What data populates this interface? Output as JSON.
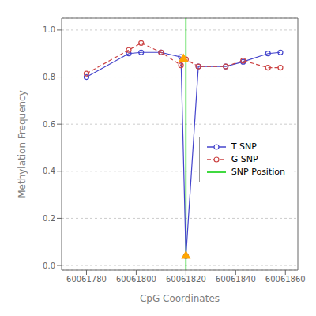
{
  "chart_data": {
    "type": "line",
    "xlabel": "CpG Coordinates",
    "ylabel": "Methylation Frequency",
    "x": [
      60061780,
      60061797,
      60061802,
      60061810,
      60061818,
      60061820,
      60061825,
      60061836,
      60061843,
      60061853,
      60061858
    ],
    "series": [
      {
        "name": "T SNP",
        "color": "#4444cc",
        "line_style": "solid",
        "marker": "circle",
        "values": [
          0.8,
          0.9,
          0.905,
          0.905,
          0.885,
          0.04,
          0.845,
          0.845,
          0.865,
          0.9,
          0.905
        ]
      },
      {
        "name": "G SNP",
        "color": "#cc4444",
        "line_style": "dashed",
        "marker": "circle",
        "values": [
          0.815,
          0.915,
          0.945,
          0.905,
          0.85,
          0.875,
          0.845,
          0.845,
          0.87,
          0.84,
          0.84
        ]
      }
    ],
    "vlines": [
      {
        "name": "SNP Position",
        "x": 60061820,
        "color": "#00cc00",
        "line_style": "solid"
      }
    ],
    "points": {
      "color": "#FFA500",
      "marker": "triangle",
      "x": [
        60061819,
        60061820
      ],
      "y": [
        0.877,
        0.04
      ]
    },
    "xlim": [
      60061770,
      60061865
    ],
    "ylim": [
      -0.02,
      1.05
    ],
    "xticks": [
      60061780,
      60061800,
      60061820,
      60061840,
      60061860
    ],
    "yticks": [
      {
        "value": 0.0,
        "label": "0.0"
      },
      {
        "value": 0.2,
        "label": "0.2"
      },
      {
        "value": 0.4,
        "label": "0.4"
      },
      {
        "value": 0.6,
        "label": "0.6"
      },
      {
        "value": 0.8,
        "label": "0.8"
      },
      {
        "value": 1.0,
        "label": "1.0"
      }
    ],
    "grid": "y",
    "legend": "right"
  }
}
